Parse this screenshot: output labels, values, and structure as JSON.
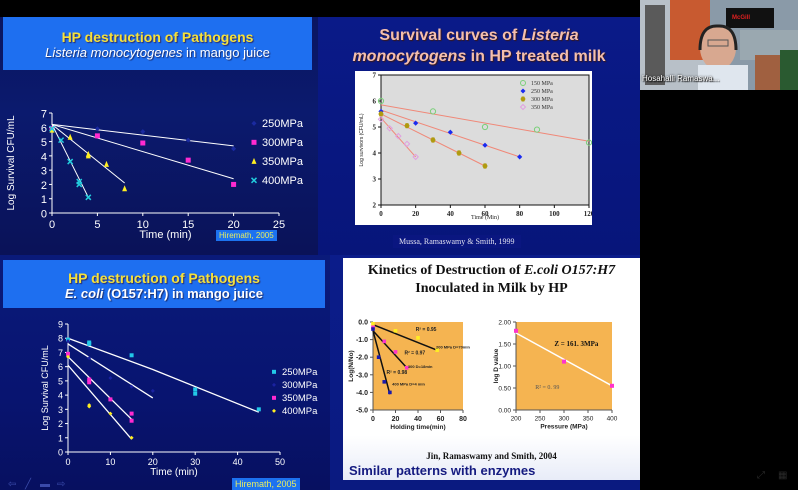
{
  "presenter": {
    "name": "Hosahalli Ramaswa...",
    "video_sign_text": "McGill"
  },
  "slide_nav": {
    "icons": [
      "back-arrow-icon",
      "pen-icon",
      "slides-grid-icon",
      "forward-arrow-icon"
    ]
  },
  "meeting_controls": {
    "icons": [
      "expand-icon",
      "grid-view-icon"
    ]
  },
  "quadrants": {
    "q1": {
      "title": "HP destruction of Pathogens",
      "subtitle_italic": "Listeria monocytogenes",
      "subtitle_rest": " in mango juice",
      "citation": "Hiremath, 2005"
    },
    "q2": {
      "title_part1": "Survival curves of ",
      "title_italic1": "Listeria",
      "title_italic2": "monocytogens",
      "title_part2": " in HP treated milk",
      "citation": "Mussa, Ramaswamy & Smith, 1999"
    },
    "q3": {
      "title": "HP destruction of Pathogens",
      "subtitle_italic": "E. coli",
      "subtitle_rest": " (O157:H7) in mango juice",
      "citation": "Hiremath, 2005"
    },
    "q4": {
      "title_part1": "Kinetics of Destruction of ",
      "title_italic": "E.coli O157:H7",
      "title_line2": "Inoculated in Milk by HP",
      "citation": "Jin, Ramaswamy and Smith, 2004",
      "footer": "Similar patterns with enzymes"
    }
  },
  "chart_data": [
    {
      "id": "listeria-mango",
      "type": "scatter",
      "title": "HP destruction of Pathogens - Listeria monocytogenes in mango juice",
      "xlabel": "Time (min)",
      "ylabel": "Log Survival CFU/mL",
      "xlim": [
        0,
        25
      ],
      "ylim": [
        0,
        7
      ],
      "xticks": [
        "0",
        "5",
        "10",
        "15",
        "20",
        "25"
      ],
      "yticks": [
        "0",
        "1",
        "2",
        "3",
        "4",
        "5",
        "6",
        "7"
      ],
      "legend_position": "right",
      "series": [
        {
          "name": "250MPa",
          "color": "#1a2aa0",
          "marker": "diamond",
          "points": [
            [
              0,
              6.0
            ],
            [
              5,
              5.9
            ],
            [
              10,
              5.7
            ],
            [
              15,
              5.1
            ],
            [
              20,
              4.5
            ]
          ],
          "fit": [
            [
              0,
              6.2
            ],
            [
              20,
              4.7
            ]
          ]
        },
        {
          "name": "300MPa",
          "color": "#ff2ad0",
          "marker": "square",
          "points": [
            [
              0,
              5.9
            ],
            [
              5,
              5.4
            ],
            [
              10,
              4.9
            ],
            [
              15,
              3.7
            ],
            [
              20,
              2.0
            ]
          ],
          "fit": [
            [
              0,
              6.2
            ],
            [
              20,
              2.4
            ]
          ]
        },
        {
          "name": "350MPa",
          "color": "#ffee22",
          "marker": "triangle",
          "points": [
            [
              0,
              5.8
            ],
            [
              2,
              5.3
            ],
            [
              4,
              4.1
            ],
            [
              4,
              4.0
            ],
            [
              6,
              3.4
            ],
            [
              8,
              1.7
            ]
          ],
          "fit": [
            [
              0,
              6.2
            ],
            [
              8,
              2.1
            ]
          ]
        },
        {
          "name": "400MPa",
          "color": "#22ccdd",
          "marker": "x",
          "points": [
            [
              0,
              5.9
            ],
            [
              1,
              5.1
            ],
            [
              2,
              3.6
            ],
            [
              3,
              2.2
            ],
            [
              3,
              2.0
            ],
            [
              4,
              1.1
            ]
          ],
          "fit": [
            [
              0,
              6.2
            ],
            [
              4,
              1.1
            ]
          ]
        }
      ]
    },
    {
      "id": "listeria-milk",
      "type": "scatter",
      "title": "Survival curves of Listeria monocytogens in HP treated milk",
      "xlabel": "Time (Min)",
      "ylabel": "Log survivors (CFU/mL)",
      "xlim": [
        0,
        120
      ],
      "ylim": [
        2,
        7
      ],
      "xticks": [
        "0",
        "20",
        "40",
        "60",
        "80",
        "100",
        "120"
      ],
      "yticks": [
        "2",
        "3",
        "4",
        "5",
        "6",
        "7"
      ],
      "legend_position": "top-right",
      "series": [
        {
          "name": "150 MPa",
          "color": "#7ad07a",
          "marker": "open-circle",
          "points": [
            [
              0,
              6.0
            ],
            [
              30,
              5.6
            ],
            [
              60,
              5.0
            ],
            [
              90,
              4.9
            ],
            [
              120,
              4.4
            ]
          ],
          "fit": [
            [
              0,
              5.85
            ],
            [
              120,
              4.45
            ]
          ]
        },
        {
          "name": "250 MPa",
          "color": "#1a2af0",
          "marker": "diamond",
          "points": [
            [
              0,
              5.6
            ],
            [
              20,
              5.15
            ],
            [
              40,
              4.8
            ],
            [
              60,
              4.3
            ],
            [
              80,
              3.85
            ]
          ],
          "fit": [
            [
              0,
              5.65
            ],
            [
              80,
              3.85
            ]
          ]
        },
        {
          "name": "300 MPa",
          "color": "#b09a10",
          "marker": "hexagon",
          "points": [
            [
              0,
              5.5
            ],
            [
              15,
              5.05
            ],
            [
              30,
              4.5
            ],
            [
              45,
              4.0
            ],
            [
              60,
              3.5
            ]
          ],
          "fit": [
            [
              0,
              5.5
            ],
            [
              60,
              3.5
            ]
          ]
        },
        {
          "name": "350 MPa",
          "color": "#e0a0e0",
          "marker": "open-diamond",
          "points": [
            [
              0,
              5.3
            ],
            [
              5,
              4.95
            ],
            [
              10,
              4.65
            ],
            [
              15,
              4.35
            ],
            [
              20,
              3.85
            ]
          ],
          "fit": [
            [
              0,
              5.35
            ],
            [
              20,
              3.85
            ]
          ]
        }
      ]
    },
    {
      "id": "ecoli-mango",
      "type": "scatter",
      "title": "HP destruction of Pathogens - E. coli (O157:H7) in mango juice",
      "xlabel": "Time (min)",
      "ylabel": "Log Survival CFU/mL",
      "xlim": [
        0,
        50
      ],
      "ylim": [
        0,
        9
      ],
      "xticks": [
        "0",
        "10",
        "20",
        "30",
        "40",
        "50"
      ],
      "yticks": [
        "0",
        "1",
        "2",
        "3",
        "4",
        "5",
        "6",
        "7",
        "8",
        "9"
      ],
      "legend_position": "right",
      "series": [
        {
          "name": "250MPa",
          "color": "#22c8e8",
          "marker": "square",
          "points": [
            [
              0,
              7.9
            ],
            [
              5,
              7.7
            ],
            [
              5,
              7.6
            ],
            [
              15,
              6.8
            ],
            [
              30,
              4.4
            ],
            [
              30,
              4.1
            ],
            [
              45,
              3.0
            ]
          ],
          "fit": [
            [
              0,
              8.0
            ],
            [
              20,
              5.8
            ],
            [
              45,
              2.8
            ]
          ]
        },
        {
          "name": "300MPa",
          "color": "#1a22a0",
          "marker": "diamond",
          "points": [
            [
              0,
              7.8
            ],
            [
              5,
              6.6
            ],
            [
              10,
              5.2
            ],
            [
              15,
              4.6
            ],
            [
              20,
              4.3
            ]
          ],
          "fit": [
            [
              0,
              7.6
            ],
            [
              20,
              3.8
            ]
          ]
        },
        {
          "name": "350MPa",
          "color": "#ff2ad0",
          "marker": "square",
          "points": [
            [
              0,
              6.9
            ],
            [
              5,
              5.1
            ],
            [
              5,
              4.9
            ],
            [
              10,
              3.7
            ],
            [
              15,
              2.7
            ],
            [
              15,
              2.2
            ]
          ],
          "fit": [
            [
              0,
              6.7
            ],
            [
              15,
              2.3
            ]
          ]
        },
        {
          "name": "400MPa",
          "color": "#ffee22",
          "marker": "diamond",
          "points": [
            [
              0,
              6.7
            ],
            [
              5,
              3.3
            ],
            [
              5,
              3.2
            ],
            [
              10,
              2.7
            ],
            [
              15,
              1.0
            ]
          ],
          "fit": [
            [
              0,
              6.1
            ],
            [
              15,
              0.9
            ]
          ]
        }
      ]
    },
    {
      "id": "ecoli-milk-kinetics",
      "type": "scatter",
      "title": "Kinetics of Destruction of E.coli O157:H7 Inoculated in Milk by HP",
      "xlabel": "Holding time(min)",
      "ylabel": "Log(N/No)",
      "xlim": [
        0,
        80
      ],
      "ylim": [
        -5.0,
        0.0
      ],
      "xticks": [
        "0",
        "20",
        "40",
        "60",
        "80"
      ],
      "yticks": [
        "0.0",
        "-1.0",
        "-2.0",
        "-3.0",
        "-4.0",
        "-5.0"
      ],
      "annotations": [
        "R² = 0.95",
        "200 MPa D=70min",
        "R² = 0.97",
        "300 D=18min",
        "R² = 0.98",
        "400 MPa D=4 min"
      ],
      "series": [
        {
          "name": "200 MPa",
          "color": "#ffee22",
          "points": [
            [
              0,
              -0.1
            ],
            [
              20,
              -0.5
            ],
            [
              40,
              -0.9
            ],
            [
              57,
              -1.6
            ]
          ],
          "fit": [
            [
              0,
              -0.15
            ],
            [
              57,
              -1.6
            ]
          ]
        },
        {
          "name": "300 MPa",
          "color": "#ff33cc",
          "points": [
            [
              0,
              -0.3
            ],
            [
              10,
              -1.1
            ],
            [
              20,
              -1.7
            ],
            [
              30,
              -2.6
            ]
          ],
          "fit": [
            [
              0,
              -0.5
            ],
            [
              30,
              -2.6
            ]
          ]
        },
        {
          "name": "400 MPa",
          "color": "#1a1aaa",
          "points": [
            [
              0,
              -0.4
            ],
            [
              5,
              -2.0
            ],
            [
              10,
              -3.4
            ],
            [
              15,
              -4.0
            ]
          ],
          "fit": [
            [
              0,
              -0.5
            ],
            [
              15,
              -4.1
            ]
          ]
        }
      ]
    },
    {
      "id": "ecoli-milk-z",
      "type": "scatter",
      "title": "",
      "xlabel": "Pressure (MPa)",
      "ylabel": "log D value",
      "xlim": [
        200,
        400
      ],
      "ylim": [
        0.0,
        2.0
      ],
      "xticks": [
        "200",
        "250",
        "300",
        "350",
        "400"
      ],
      "yticks": [
        "0.00",
        "0.50",
        "1.00",
        "1.50",
        "2.00"
      ],
      "annotations": [
        "Z = 161. 3MPa",
        "R² = 0. 99"
      ],
      "series": [
        {
          "name": "log D",
          "color": "#ff33cc",
          "points": [
            [
              200,
              1.8
            ],
            [
              300,
              1.1
            ],
            [
              400,
              0.55
            ]
          ],
          "fit": [
            [
              200,
              1.75
            ],
            [
              400,
              0.55
            ]
          ]
        }
      ]
    }
  ]
}
